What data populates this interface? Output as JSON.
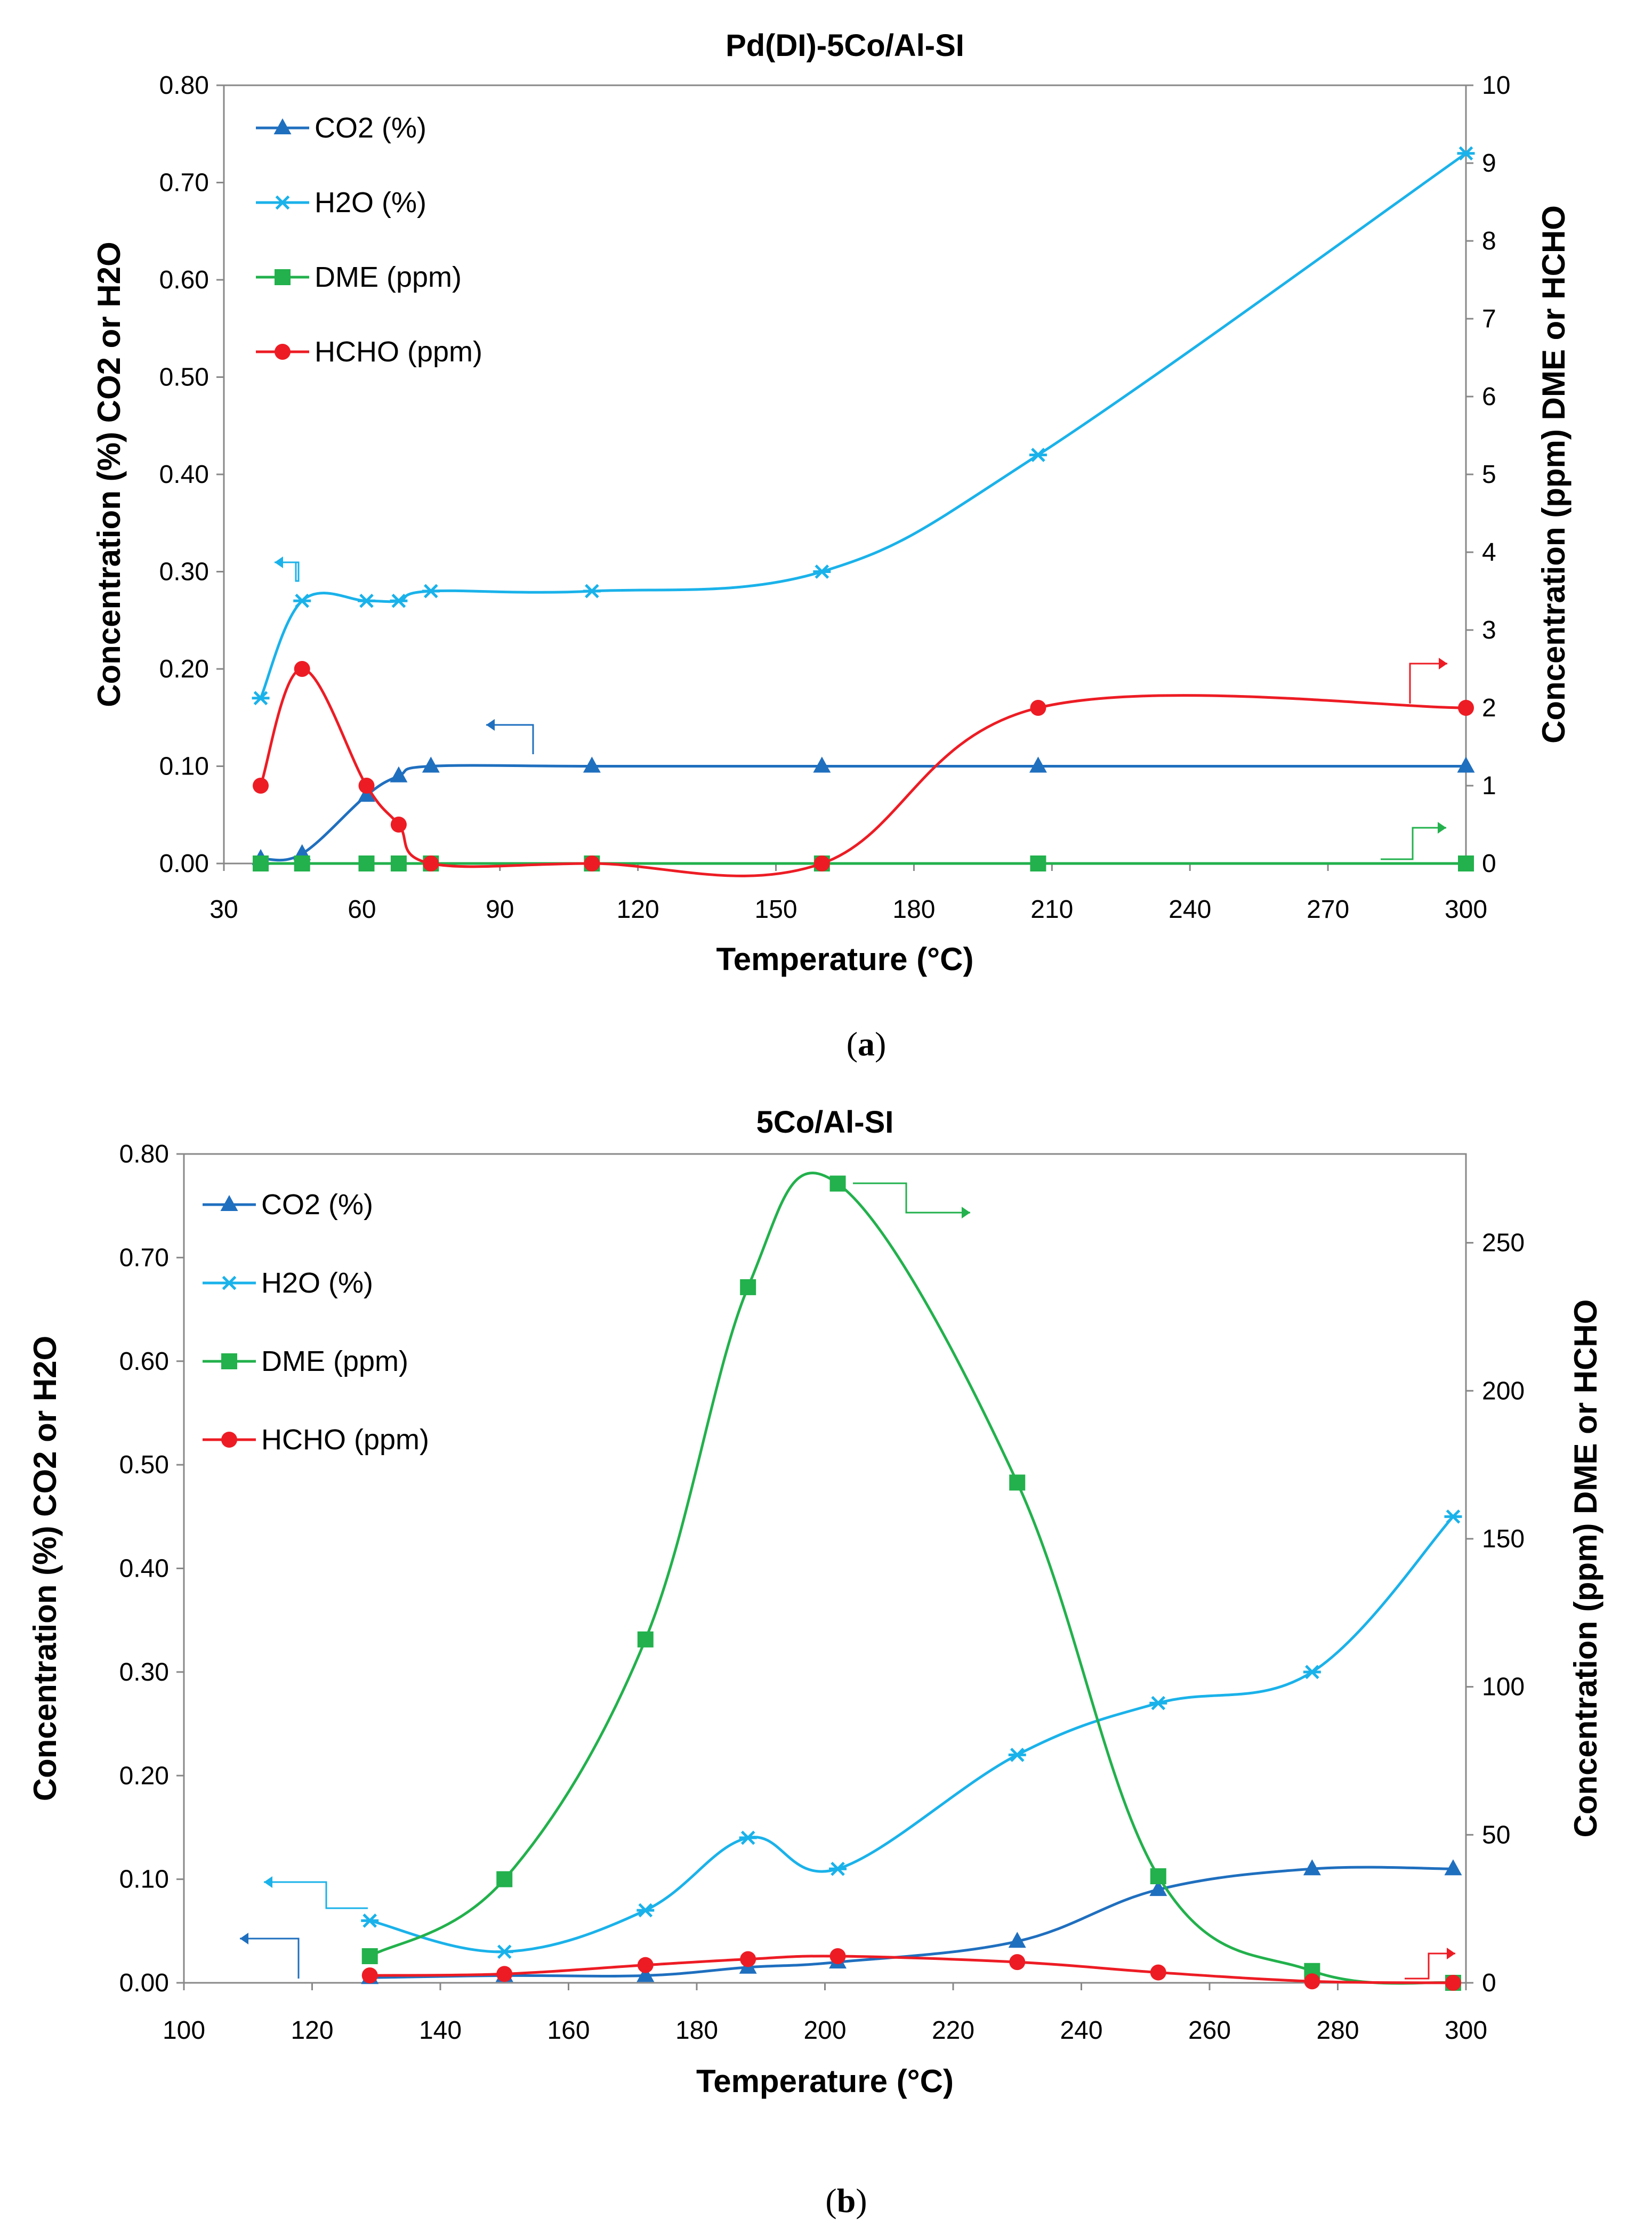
{
  "chart_data": [
    {
      "type": "line",
      "title": "Pd(DI)-5Co/Al-SI",
      "caption": {
        "open": "(",
        "letter": "a",
        "close": ")"
      },
      "xlabel": "Temperature (°C)",
      "ylabel_left": "Concentration (%) CO2 or H2O",
      "ylabel_right": "Concentration (ppm) DME or HCHO",
      "xlim": [
        30,
        300
      ],
      "xticks": [
        "30",
        "60",
        "90",
        "120",
        "150",
        "180",
        "210",
        "240",
        "270",
        "300"
      ],
      "ylim_left": [
        0,
        0.8
      ],
      "yticks_left": [
        "0.00",
        "0.10",
        "0.20",
        "0.30",
        "0.40",
        "0.50",
        "0.60",
        "0.70",
        "0.80"
      ],
      "ylim_right": [
        0,
        10
      ],
      "yticks_right": [
        "0",
        "1",
        "2",
        "3",
        "4",
        "5",
        "6",
        "7",
        "8",
        "9",
        "10"
      ],
      "series": [
        {
          "name": "CO2 (%)",
          "axis": "left",
          "color": "#1f6fbf",
          "marker": "triangle",
          "x": [
            38,
            47,
            61,
            68,
            75,
            110,
            160,
            207,
            300
          ],
          "y": [
            0.005,
            0.01,
            0.07,
            0.09,
            0.1,
            0.1,
            0.1,
            0.1,
            0.1
          ]
        },
        {
          "name": "H2O (%)",
          "axis": "left",
          "color": "#1ab2ea",
          "marker": "asterisk",
          "x": [
            38,
            47,
            61,
            68,
            75,
            110,
            160,
            207,
            300
          ],
          "y": [
            0.17,
            0.27,
            0.27,
            0.27,
            0.28,
            0.28,
            0.3,
            0.42,
            0.73
          ]
        },
        {
          "name": "DME (ppm)",
          "axis": "right",
          "color": "#22b14c",
          "marker": "square",
          "x": [
            38,
            47,
            61,
            68,
            75,
            110,
            160,
            207,
            300
          ],
          "y": [
            0,
            0,
            0,
            0,
            0,
            0,
            0,
            0,
            0
          ]
        },
        {
          "name": "HCHO (ppm)",
          "axis": "right",
          "color": "#ed1c24",
          "marker": "circle",
          "x": [
            38,
            47,
            61,
            68,
            75,
            110,
            160,
            207,
            300
          ],
          "y": [
            1.0,
            2.5,
            1.0,
            0.5,
            0.0,
            0.0,
            0.0,
            2.0,
            2.0
          ]
        }
      ]
    },
    {
      "type": "line",
      "title": "5Co/Al-SI",
      "caption": {
        "open": "(",
        "letter": "b",
        "close": ")"
      },
      "xlabel": "Temperature (°C)",
      "ylabel_left": "Concentration (%) CO2 or H2O",
      "ylabel_right": "Concentration (ppm) DME or HCHO",
      "xlim": [
        100,
        300
      ],
      "xticks": [
        "100",
        "120",
        "140",
        "160",
        "180",
        "200",
        "220",
        "240",
        "260",
        "280",
        "300"
      ],
      "ylim_left": [
        0,
        0.8
      ],
      "yticks_left": [
        "0.00",
        "0.10",
        "0.20",
        "0.30",
        "0.40",
        "0.50",
        "0.60",
        "0.70",
        "0.80"
      ],
      "ylim_right": [
        0,
        280
      ],
      "yticks_right": [
        "0",
        "50",
        "100",
        "150",
        "200",
        "250"
      ],
      "series": [
        {
          "name": "CO2 (%)",
          "axis": "left",
          "color": "#1f6fbf",
          "marker": "triangle",
          "x": [
            129,
            150,
            172,
            188,
            202,
            230,
            252,
            276,
            298
          ],
          "y": [
            0.005,
            0.007,
            0.007,
            0.015,
            0.02,
            0.04,
            0.09,
            0.11,
            0.11
          ]
        },
        {
          "name": "H2O (%)",
          "axis": "left",
          "color": "#1ab2ea",
          "marker": "asterisk",
          "x": [
            129,
            150,
            172,
            188,
            202,
            230,
            252,
            276,
            298
          ],
          "y": [
            0.06,
            0.03,
            0.07,
            0.14,
            0.11,
            0.22,
            0.27,
            0.3,
            0.45
          ]
        },
        {
          "name": "DME (ppm)",
          "axis": "right",
          "color": "#22b14c",
          "marker": "square",
          "x": [
            129,
            150,
            172,
            188,
            202,
            230,
            252,
            276,
            298
          ],
          "y": [
            9,
            35,
            116,
            235,
            270,
            169,
            36,
            4,
            0
          ]
        },
        {
          "name": "HCHO (ppm)",
          "axis": "right",
          "color": "#ed1c24",
          "marker": "circle",
          "x": [
            129,
            150,
            172,
            188,
            202,
            230,
            252,
            276,
            298
          ],
          "y": [
            2.5,
            3,
            6,
            8,
            9,
            7,
            3.5,
            0.5,
            0
          ]
        }
      ]
    }
  ]
}
